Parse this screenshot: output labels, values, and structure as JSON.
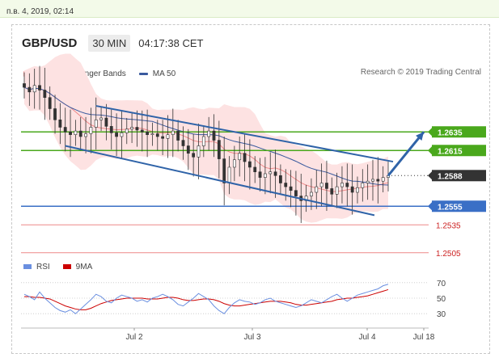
{
  "topbar": {
    "date_text": "п.в. 4, 2019, 02:14"
  },
  "header": {
    "pair": "GBP/USD",
    "timeframe": "30 MIN",
    "time": "04:17:38 CET"
  },
  "legend": {
    "ma20_bb": "MA 20 + Bollinger Bands",
    "ma50": "MA 50",
    "copyright": "Research © 2019 Trading Central"
  },
  "rsi_legend": {
    "rsi": "RSI",
    "ma9": "9MA"
  },
  "colors": {
    "resistance": "#4aa81c",
    "support": "#3a6fc6",
    "pivot": "#333333",
    "target_line": "#ee8888",
    "ma50": "#3a5a9e",
    "ma20": "#f08a8a",
    "bollinger_fill": "#fde2e2",
    "rsi": "#6a8fe0",
    "rsi_ma": "#cc0000",
    "arrow": "#2f63a8"
  },
  "chart_data": {
    "type": "candlestick",
    "instrument": "GBP/USD",
    "timeframe": "30 MIN",
    "x_ticks": [
      "Jul 2",
      "Jul 3",
      "Jul 4",
      "Jul 18"
    ],
    "price_range": [
      1.249,
      1.269
    ],
    "last_price": 1.2588,
    "levels": [
      {
        "label": "1.2635",
        "value": 1.2635,
        "kind": "resistance"
      },
      {
        "label": "1.2615",
        "value": 1.2615,
        "kind": "resistance"
      },
      {
        "label": "1.2588",
        "value": 1.2588,
        "kind": "pivot"
      },
      {
        "label": "1.2555",
        "value": 1.2555,
        "kind": "support"
      },
      {
        "label": "1.2535",
        "value": 1.2535,
        "kind": "target"
      },
      {
        "label": "1.2505",
        "value": 1.2505,
        "kind": "target"
      }
    ],
    "close_series": [
      1.2683,
      1.2678,
      1.2685,
      1.268,
      1.2672,
      1.266,
      1.2648,
      1.264,
      1.2635,
      1.2632,
      1.2636,
      1.263,
      1.2633,
      1.264,
      1.2648,
      1.265,
      1.2641,
      1.2634,
      1.263,
      1.2634,
      1.2638,
      1.264,
      1.2637,
      1.2635,
      1.2632,
      1.2633,
      1.263,
      1.2628,
      1.2632,
      1.2636,
      1.2626,
      1.262,
      1.2612,
      1.2608,
      1.262,
      1.263,
      1.2636,
      1.2626,
      1.2606,
      1.258,
      1.2597,
      1.2605,
      1.2612,
      1.2603,
      1.2597,
      1.2592,
      1.2586,
      1.259,
      1.2592,
      1.2588,
      1.258,
      1.2576,
      1.2572,
      1.2566,
      1.2561,
      1.2566,
      1.257,
      1.2576,
      1.258,
      1.2574,
      1.2568,
      1.2576,
      1.258,
      1.2576,
      1.257,
      1.2575,
      1.258,
      1.2582,
      1.2584,
      1.2582,
      1.2586,
      1.2588
    ],
    "rsi": {
      "levels": [
        70,
        50,
        30
      ],
      "rsi_values": [
        55,
        52,
        48,
        58,
        50,
        44,
        38,
        34,
        32,
        35,
        30,
        36,
        42,
        48,
        55,
        52,
        46,
        44,
        50,
        54,
        52,
        50,
        46,
        48,
        45,
        50,
        52,
        55,
        52,
        48,
        42,
        40,
        45,
        50,
        56,
        52,
        48,
        40,
        34,
        30,
        38,
        44,
        48,
        46,
        45,
        42,
        44,
        48,
        50,
        46,
        44,
        42,
        40,
        38,
        40,
        44,
        48,
        46,
        44,
        48,
        52,
        55,
        50,
        46,
        50,
        54,
        56,
        58,
        60,
        62,
        66,
        68
      ],
      "ma_values": [
        52,
        52,
        51,
        51,
        50,
        49,
        46,
        43,
        40,
        38,
        36,
        35,
        35,
        37,
        40,
        43,
        45,
        47,
        48,
        49,
        50,
        50,
        50,
        50,
        49,
        49,
        49,
        50,
        51,
        51,
        50,
        48,
        47,
        47,
        48,
        49,
        49,
        48,
        46,
        43,
        41,
        40,
        40,
        41,
        42,
        43,
        44,
        45,
        46,
        46,
        46,
        45,
        44,
        42,
        41,
        41,
        42,
        43,
        44,
        45,
        46,
        48,
        49,
        50,
        50,
        51,
        52,
        53,
        55,
        57,
        59,
        61
      ]
    }
  }
}
